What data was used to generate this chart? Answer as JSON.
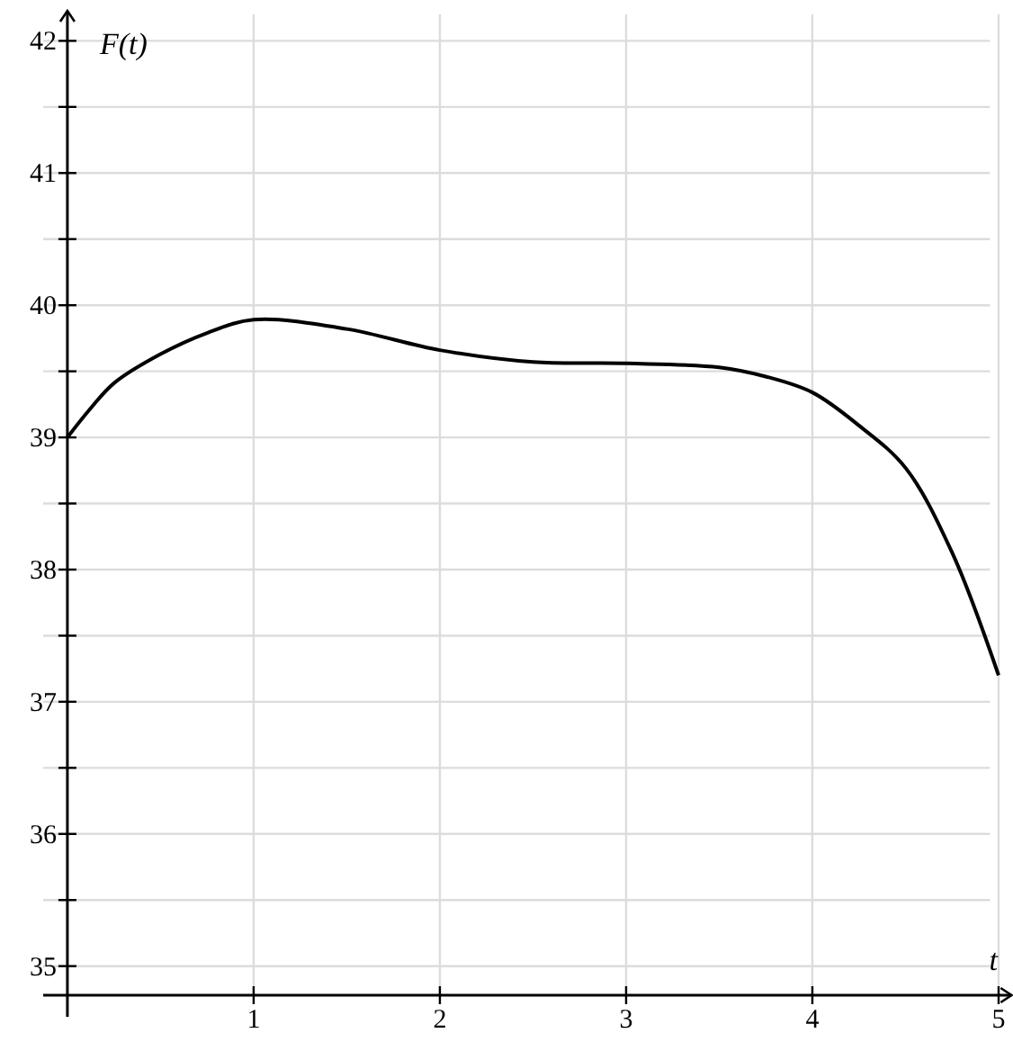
{
  "chart_data": {
    "type": "line",
    "xlabel": "t",
    "ylabel": "F(t)",
    "x": [
      0,
      0.125,
      0.25,
      0.5,
      0.75,
      1,
      1.5,
      2,
      2.5,
      3,
      3.5,
      3.75,
      4,
      4.25,
      4.5,
      4.75,
      5
    ],
    "series": [
      {
        "color": "#000000",
        "values": [
          39,
          39.22,
          39.41,
          39.63,
          39.79,
          39.89,
          39.82,
          39.66,
          39.57,
          39.56,
          39.53,
          39.46,
          39.34,
          39.09,
          38.77,
          38.13,
          37.2
        ]
      }
    ],
    "xlim": [
      -0.13,
      5.05
    ],
    "ylim": [
      34.78,
      42.2
    ],
    "xticks": [
      1,
      2,
      3,
      4,
      5
    ],
    "yticks": [
      35,
      {
        "value": 35.5,
        "label": null
      },
      36,
      {
        "value": 36.5,
        "label": null
      },
      37,
      {
        "value": 37.5,
        "label": null
      },
      38,
      {
        "value": 38.5,
        "label": null
      },
      39,
      {
        "value": 39.5,
        "label": null
      },
      40,
      {
        "value": 40.5,
        "label": null
      },
      41,
      {
        "value": 41.5,
        "label": null
      },
      42
    ],
    "grid": true,
    "marker": "none",
    "line_style": "solid"
  }
}
